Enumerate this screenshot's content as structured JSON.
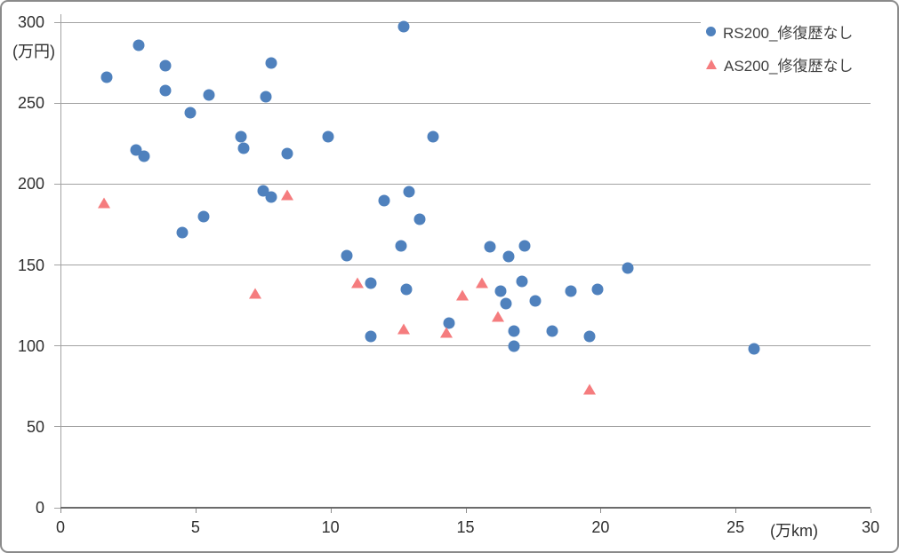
{
  "chart_data": {
    "type": "scatter",
    "title": "",
    "x_unit": "(万km)",
    "y_unit": "(万円)",
    "xlabel": "",
    "ylabel": "",
    "xlim": [
      0,
      30
    ],
    "ylim": [
      0,
      300
    ],
    "x_ticks": [
      0,
      5,
      10,
      15,
      20,
      25,
      30
    ],
    "y_ticks": [
      0,
      50,
      100,
      150,
      200,
      250,
      300
    ],
    "grid": "horizontal",
    "legend_position": "top-right",
    "colors": {
      "gridline": "#a2a2a2",
      "axis": "#6b6b6b",
      "text": "#2f2f2f"
    },
    "series": [
      {
        "name": "RS200_修復歴なし",
        "id": "rs200",
        "marker": "circle",
        "color": "#4F81BD",
        "points": [
          [
            1.7,
            266
          ],
          [
            2.9,
            286
          ],
          [
            2.8,
            221
          ],
          [
            3.1,
            217
          ],
          [
            3.9,
            273
          ],
          [
            3.9,
            258
          ],
          [
            4.5,
            170
          ],
          [
            4.8,
            244
          ],
          [
            5.3,
            180
          ],
          [
            5.5,
            255
          ],
          [
            6.7,
            229
          ],
          [
            6.8,
            222
          ],
          [
            7.5,
            196
          ],
          [
            7.6,
            254
          ],
          [
            7.8,
            275
          ],
          [
            7.8,
            192
          ],
          [
            8.4,
            219
          ],
          [
            9.9,
            229
          ],
          [
            10.6,
            156
          ],
          [
            11.5,
            139
          ],
          [
            11.5,
            106
          ],
          [
            12.0,
            190
          ],
          [
            12.6,
            162
          ],
          [
            12.7,
            297
          ],
          [
            12.8,
            135
          ],
          [
            12.9,
            195
          ],
          [
            13.3,
            178
          ],
          [
            13.8,
            229
          ],
          [
            14.4,
            114
          ],
          [
            15.9,
            161
          ],
          [
            16.3,
            134
          ],
          [
            16.5,
            126
          ],
          [
            16.6,
            155
          ],
          [
            16.8,
            109
          ],
          [
            16.8,
            100
          ],
          [
            17.1,
            140
          ],
          [
            17.2,
            162
          ],
          [
            17.6,
            128
          ],
          [
            18.2,
            109
          ],
          [
            18.9,
            134
          ],
          [
            19.6,
            106
          ],
          [
            19.9,
            135
          ],
          [
            21.0,
            148
          ],
          [
            25.7,
            98
          ]
        ]
      },
      {
        "name": "AS200_修復歴なし",
        "id": "as200",
        "marker": "triangle",
        "color": "#F57C7E",
        "points": [
          [
            1.6,
            188
          ],
          [
            7.2,
            132
          ],
          [
            8.4,
            193
          ],
          [
            11.0,
            139
          ],
          [
            12.7,
            110
          ],
          [
            14.3,
            108
          ],
          [
            14.9,
            131
          ],
          [
            15.6,
            139
          ],
          [
            16.2,
            118
          ],
          [
            19.6,
            73
          ]
        ]
      }
    ]
  }
}
